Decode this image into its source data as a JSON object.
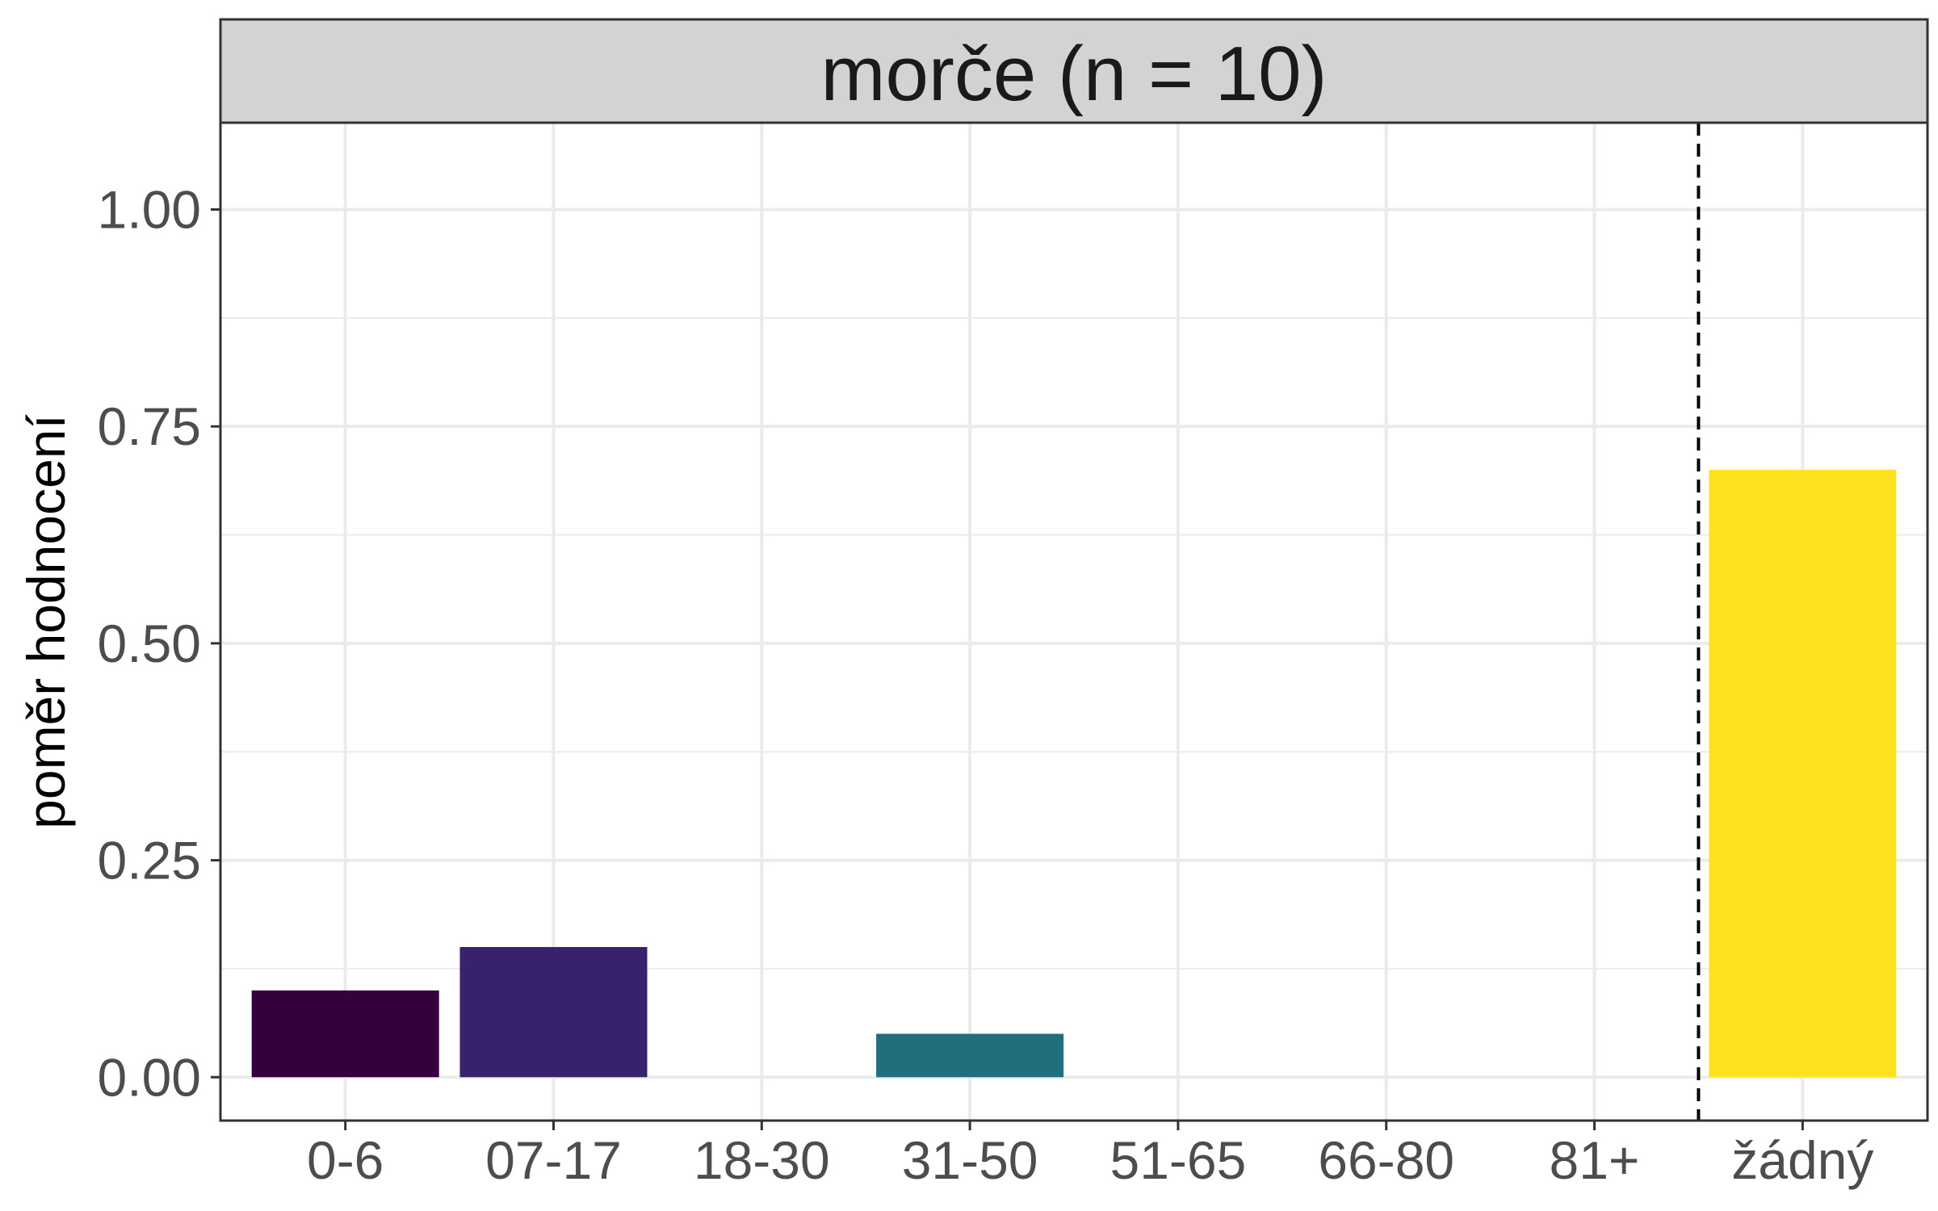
{
  "chart_data": {
    "type": "bar",
    "title": "morče (n = 10)",
    "xlabel": "",
    "ylabel": "poměr hodnocení",
    "categories": [
      "0-6",
      "07-17",
      "18-30",
      "31-50",
      "51-65",
      "66-80",
      "81+",
      "žádný"
    ],
    "values": [
      0.1,
      0.15,
      0.0,
      0.05,
      0.0,
      0.0,
      0.0,
      0.7
    ],
    "colors": [
      "#35003e",
      "#37226b",
      "#2c4a84",
      "#216e7c",
      "#1f8e7e",
      "#3db468",
      "#8bd24f",
      "#fde31e"
    ],
    "ylim": [
      -0.05,
      1.1
    ],
    "yticks": [
      "0.00",
      "0.25",
      "0.50",
      "0.75",
      "1.00"
    ],
    "ytick_values": [
      0,
      0.25,
      0.5,
      0.75,
      1.0
    ],
    "reference_line": {
      "between": [
        "81+",
        "žádný"
      ],
      "style": "dashed"
    },
    "grid": true,
    "legend": "none"
  },
  "colors": {
    "strip_background": "#d3d3d3",
    "grid": "#ebebeb",
    "panel_border": "#333333"
  }
}
